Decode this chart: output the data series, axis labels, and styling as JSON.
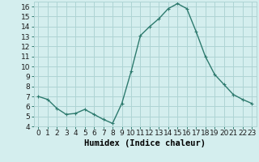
{
  "x": [
    0,
    1,
    2,
    3,
    4,
    5,
    6,
    7,
    8,
    9,
    10,
    11,
    12,
    13,
    14,
    15,
    16,
    17,
    18,
    19,
    20,
    21,
    22,
    23
  ],
  "y": [
    7.0,
    6.7,
    5.8,
    5.2,
    5.3,
    5.7,
    5.2,
    4.7,
    4.3,
    6.3,
    9.5,
    13.1,
    14.0,
    14.8,
    15.8,
    16.3,
    15.8,
    13.5,
    11.0,
    9.2,
    8.2,
    7.2,
    6.7,
    6.3
  ],
  "line_color": "#2d7a6e",
  "marker": "+",
  "marker_size": 3,
  "bg_color": "#d4eeee",
  "grid_color": "#aed4d4",
  "xlabel": "Humidex (Indice chaleur)",
  "ylim": [
    4,
    16.5
  ],
  "xlim": [
    -0.5,
    23.5
  ],
  "yticks": [
    4,
    5,
    6,
    7,
    8,
    9,
    10,
    11,
    12,
    13,
    14,
    15,
    16
  ],
  "xticks": [
    0,
    1,
    2,
    3,
    4,
    5,
    6,
    7,
    8,
    9,
    10,
    11,
    12,
    13,
    14,
    15,
    16,
    17,
    18,
    19,
    20,
    21,
    22,
    23
  ],
  "xlabel_fontsize": 7.5,
  "tick_fontsize": 6.5,
  "line_width": 1.0
}
